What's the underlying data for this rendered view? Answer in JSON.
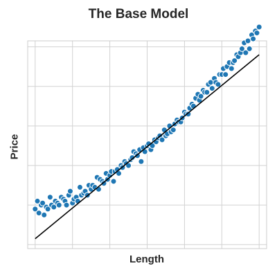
{
  "chart_data": {
    "type": "scatter",
    "title": "The Base Model",
    "xlabel": "Length",
    "ylabel": "Price",
    "xlim": [
      -0.1,
      3.1
    ],
    "ylim": [
      -0.02,
      1.03
    ],
    "x_ticks": [
      0,
      0.5,
      1,
      1.5,
      2,
      2.5,
      3
    ],
    "y_ticks": [
      0,
      0.2,
      0.4,
      0.6,
      0.8,
      1.0
    ],
    "tick_labels_visible": false,
    "grid": true,
    "point_color": "#1f77b4",
    "line_color": "#000000",
    "fit_line": {
      "x": [
        0,
        3
      ],
      "y": [
        0.03,
        0.96
      ]
    },
    "series": [
      {
        "x": [
          0.0,
          0.03,
          0.05,
          0.08,
          0.1,
          0.12,
          0.15,
          0.17,
          0.2,
          0.22,
          0.25,
          0.27,
          0.3,
          0.32,
          0.35,
          0.38,
          0.4,
          0.42,
          0.45,
          0.47,
          0.5,
          0.52,
          0.55,
          0.57,
          0.6,
          0.62,
          0.65,
          0.67,
          0.7,
          0.72,
          0.75,
          0.77,
          0.8,
          0.83,
          0.85,
          0.87,
          0.9,
          0.92,
          0.95,
          0.97,
          1.0,
          1.02,
          1.05,
          1.07,
          1.1,
          1.12,
          1.15,
          1.17,
          1.2,
          1.22,
          1.25,
          1.28,
          1.3,
          1.32,
          1.35,
          1.37,
          1.4,
          1.42,
          1.45,
          1.47,
          1.5,
          1.52,
          1.55,
          1.57,
          1.6,
          1.62,
          1.65,
          1.67,
          1.7,
          1.73,
          1.75,
          1.77,
          1.8,
          1.82,
          1.85,
          1.87,
          1.9,
          1.92,
          1.95,
          1.97,
          2.0,
          2.02,
          2.05,
          2.07,
          2.1,
          2.12,
          2.15,
          2.18,
          2.2,
          2.22,
          2.25,
          2.27,
          2.3,
          2.32,
          2.35,
          2.37,
          2.4,
          2.42,
          2.45,
          2.47,
          2.5,
          2.52,
          2.55,
          2.57,
          2.6,
          2.63,
          2.65,
          2.67,
          2.7,
          2.72,
          2.75,
          2.77,
          2.8,
          2.82,
          2.85,
          2.87,
          2.9,
          2.92,
          2.95,
          2.97,
          3.0
        ],
        "y": [
          0.18,
          0.22,
          0.16,
          0.2,
          0.21,
          0.15,
          0.19,
          0.18,
          0.24,
          0.2,
          0.19,
          0.22,
          0.21,
          0.2,
          0.24,
          0.23,
          0.22,
          0.2,
          0.25,
          0.27,
          0.21,
          0.23,
          0.24,
          0.22,
          0.29,
          0.25,
          0.26,
          0.27,
          0.25,
          0.3,
          0.28,
          0.3,
          0.29,
          0.34,
          0.28,
          0.33,
          0.32,
          0.31,
          0.36,
          0.33,
          0.35,
          0.37,
          0.32,
          0.37,
          0.38,
          0.36,
          0.4,
          0.39,
          0.42,
          0.41,
          0.4,
          0.43,
          0.44,
          0.47,
          0.46,
          0.45,
          0.48,
          0.42,
          0.49,
          0.47,
          0.5,
          0.51,
          0.48,
          0.5,
          0.53,
          0.52,
          0.54,
          0.55,
          0.53,
          0.58,
          0.55,
          0.56,
          0.6,
          0.57,
          0.58,
          0.61,
          0.63,
          0.62,
          0.62,
          0.64,
          0.67,
          0.66,
          0.66,
          0.69,
          0.71,
          0.7,
          0.74,
          0.76,
          0.73,
          0.75,
          0.78,
          0.77,
          0.77,
          0.81,
          0.82,
          0.79,
          0.84,
          0.82,
          0.81,
          0.86,
          0.86,
          0.89,
          0.86,
          0.9,
          0.92,
          0.89,
          0.92,
          0.93,
          0.96,
          0.95,
          0.97,
          0.99,
          1.02,
          0.97,
          1.03,
          0.99,
          1.06,
          1.04,
          1.08,
          1.07,
          1.1
        ]
      }
    ]
  }
}
